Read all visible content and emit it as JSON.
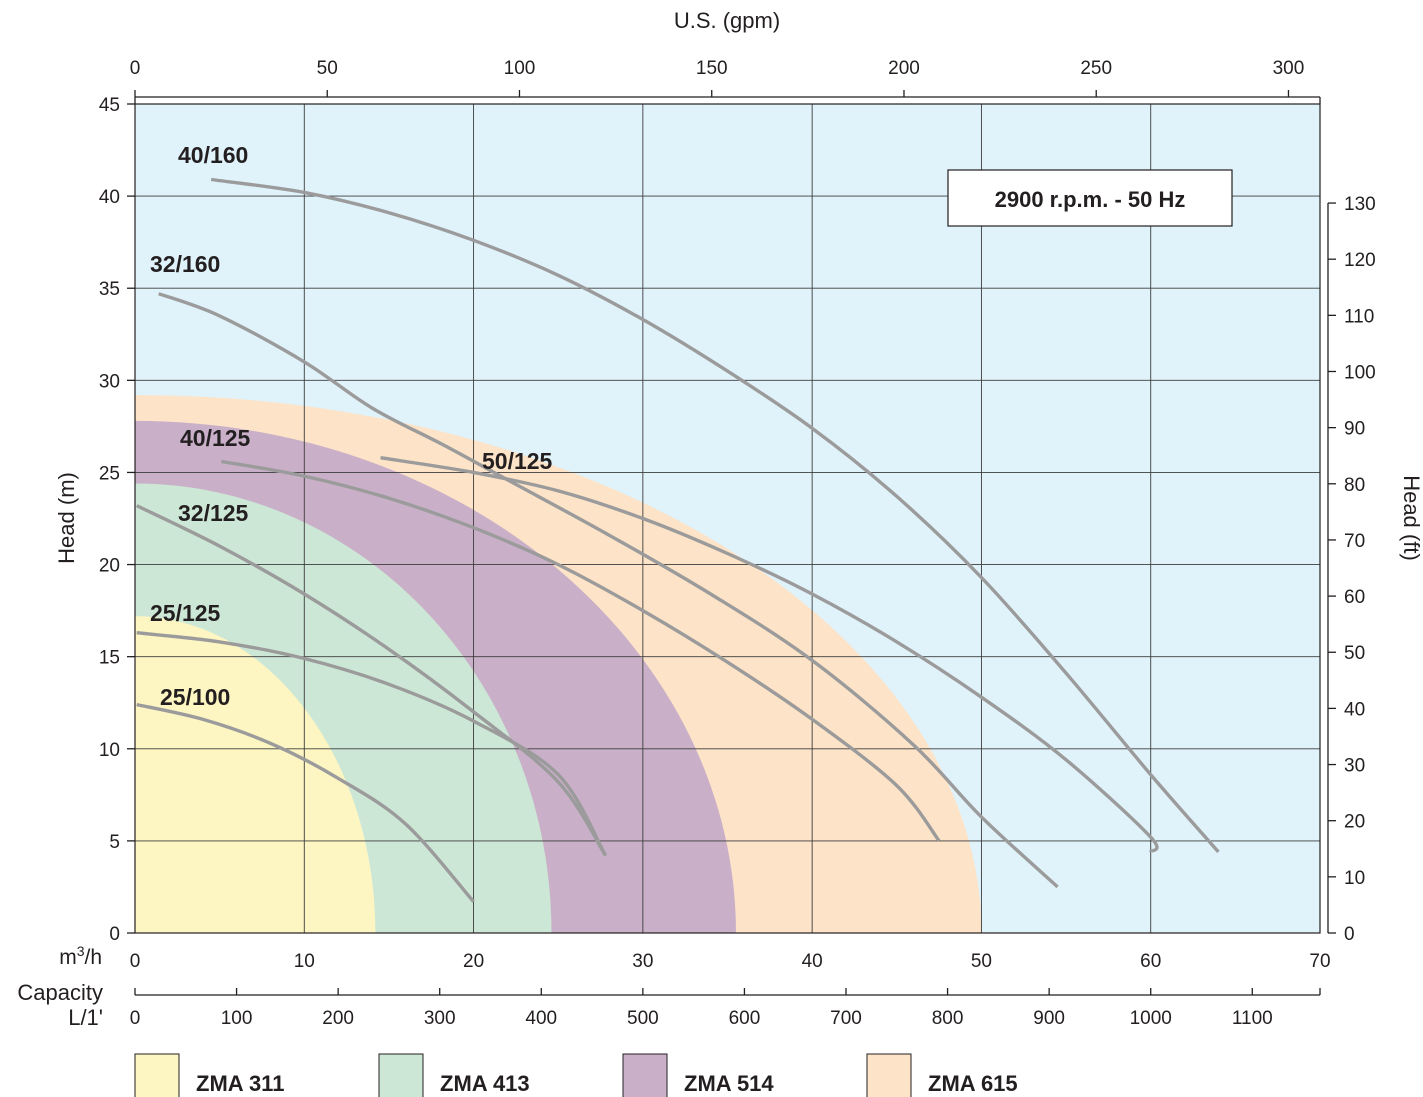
{
  "chart_data": {
    "type": "line",
    "x_top_label": "U.S. (gpm)",
    "x_bottom_label": "m³/h",
    "x_bottom_unit_base": "m",
    "x_bottom_unit_sup": "3",
    "x_bottom_unit_tail": "/h",
    "capacity_label_line1": "Capacity",
    "capacity_label_line2": "L/1'",
    "y_left_label": "Head (m)",
    "y_right_label": "Head (ft)",
    "annotation": "2900 r.p.m. - 50 Hz",
    "xlim_m3h": [
      0,
      70
    ],
    "ylim_m": [
      0,
      45
    ],
    "x_ticks_m3h": [
      "0",
      "10",
      "20",
      "30",
      "40",
      "50",
      "60",
      "70"
    ],
    "x_ticks_lpm": [
      "0",
      "100",
      "200",
      "300",
      "400",
      "500",
      "600",
      "700",
      "800",
      "900",
      "1000",
      "1100"
    ],
    "x_ticks_gpm": [
      "0",
      "50",
      "100",
      "150",
      "200",
      "250",
      "300"
    ],
    "y_ticks_m": [
      "0",
      "5",
      "10",
      "15",
      "20",
      "25",
      "30",
      "35",
      "40",
      "45"
    ],
    "y_ticks_ft": [
      "0",
      "10",
      "20",
      "30",
      "40",
      "50",
      "60",
      "70",
      "80",
      "90",
      "100",
      "110",
      "120",
      "130"
    ],
    "grid": true,
    "colors": {
      "background": "#e0f2fa",
      "grid": "#3c3c3c",
      "curve": "#9b9b9c",
      "axis": "#231f20"
    },
    "regions": [
      {
        "name": "ZMA 615",
        "color": "#fde3c7",
        "max_q": 50,
        "max_h": 29.2
      },
      {
        "name": "ZMA 514",
        "color": "#c9b0c8",
        "max_q": 35.5,
        "max_h": 27.8
      },
      {
        "name": "ZMA 413",
        "color": "#cde7d6",
        "max_q": 24.6,
        "max_h": 24.4
      },
      {
        "name": "ZMA 311",
        "color": "#fdf6c2",
        "max_q": 14.2,
        "max_h": 17.2
      }
    ],
    "series": [
      {
        "name": "40/160",
        "points": [
          [
            4.5,
            40.9
          ],
          [
            10,
            40.2
          ],
          [
            15,
            39.1
          ],
          [
            20,
            37.6
          ],
          [
            25,
            35.7
          ],
          [
            30,
            33.3
          ],
          [
            35,
            30.5
          ],
          [
            40,
            27.4
          ],
          [
            45,
            23.7
          ],
          [
            50,
            19.3
          ],
          [
            55,
            14.1
          ],
          [
            60,
            8.6
          ],
          [
            64,
            4.4
          ]
        ]
      },
      {
        "name": "32/160",
        "points": [
          [
            1.4,
            34.7
          ],
          [
            5,
            33.5
          ],
          [
            10,
            31.0
          ],
          [
            14,
            28.5
          ],
          [
            18.2,
            26.5
          ],
          [
            22,
            24.6
          ],
          [
            28,
            21.6
          ],
          [
            34,
            18.4
          ],
          [
            40,
            14.8
          ],
          [
            46,
            10.2
          ],
          [
            50,
            6.3
          ],
          [
            54.5,
            2.5
          ]
        ]
      },
      {
        "name": "50/125",
        "points": [
          [
            14.5,
            25.8
          ],
          [
            20,
            25.0
          ],
          [
            25,
            24.0
          ],
          [
            30,
            22.5
          ],
          [
            35,
            20.6
          ],
          [
            40,
            18.4
          ],
          [
            45,
            15.8
          ],
          [
            50,
            12.8
          ],
          [
            55,
            9.4
          ],
          [
            60,
            5.2
          ],
          [
            60,
            4.4
          ]
        ]
      },
      {
        "name": "40/125",
        "points": [
          [
            5.1,
            25.6
          ],
          [
            10,
            24.8
          ],
          [
            15,
            23.6
          ],
          [
            20,
            22.0
          ],
          [
            25,
            20.0
          ],
          [
            30,
            17.5
          ],
          [
            35,
            14.7
          ],
          [
            40,
            11.6
          ],
          [
            45,
            8.0
          ],
          [
            47.5,
            5.0
          ]
        ]
      },
      {
        "name": "32/125",
        "points": [
          [
            0.1,
            23.2
          ],
          [
            5,
            21.0
          ],
          [
            10,
            18.4
          ],
          [
            15,
            15.4
          ],
          [
            20,
            12.0
          ],
          [
            25,
            8.2
          ],
          [
            27.8,
            4.2
          ]
        ]
      },
      {
        "name": "25/125",
        "points": [
          [
            0.1,
            16.3
          ],
          [
            5,
            15.8
          ],
          [
            10,
            14.9
          ],
          [
            15,
            13.5
          ],
          [
            20,
            11.5
          ],
          [
            25,
            8.6
          ],
          [
            27.8,
            4.2
          ]
        ]
      },
      {
        "name": "25/100",
        "points": [
          [
            0.1,
            12.4
          ],
          [
            4,
            11.6
          ],
          [
            8,
            10.3
          ],
          [
            12,
            8.4
          ],
          [
            16,
            5.9
          ],
          [
            20,
            1.7
          ]
        ]
      }
    ],
    "legend": [
      {
        "name": "ZMA 311",
        "color": "#fdf6c2"
      },
      {
        "name": "ZMA 413",
        "color": "#cde7d6"
      },
      {
        "name": "ZMA 514",
        "color": "#c9b0c8"
      },
      {
        "name": "ZMA 615",
        "color": "#fde3c7"
      }
    ]
  }
}
